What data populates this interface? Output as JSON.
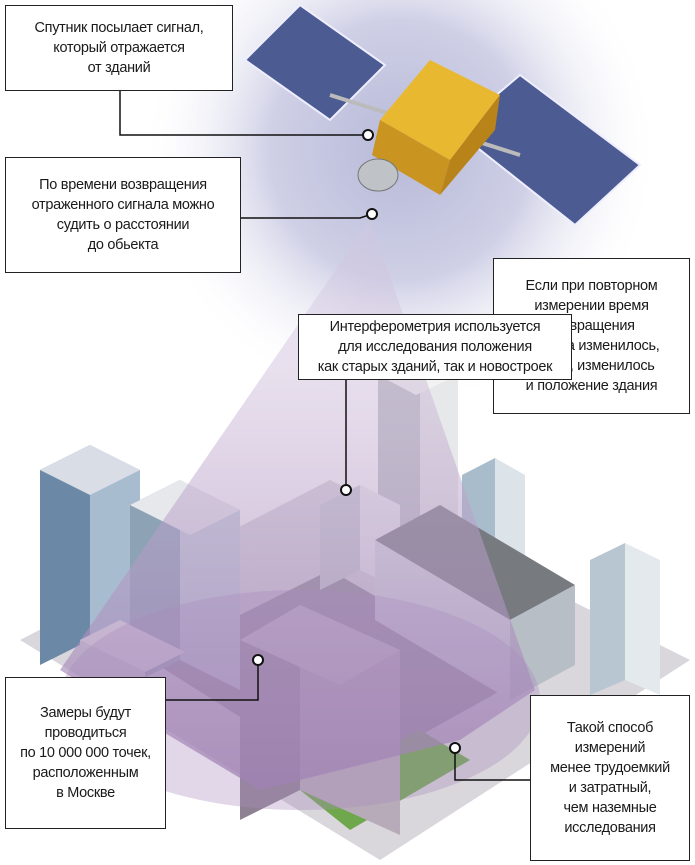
{
  "callouts": [
    {
      "lines": [
        "Спутник посылает сигнал,",
        "который отражается",
        "от зданий"
      ]
    },
    {
      "lines": [
        "По времени возвращения",
        "отраженного сигнала можно",
        "судить о расстоянии",
        "до обьекта"
      ]
    },
    {
      "lines": [
        "Если при повторном",
        "измерении время",
        "возвращения",
        "сигнала изменилось,",
        "значит, изменилось",
        "и положение здания"
      ]
    },
    {
      "lines": [
        "Интерферометрия используется",
        "для исследования положения",
        "как старых зданий, так и новостроек"
      ]
    },
    {
      "lines": [
        "Замеры будут",
        "проводиться",
        "по 10 000 000 точек,",
        "расположенным",
        "в Москве"
      ]
    },
    {
      "lines": [
        "Такой способ",
        "измерений",
        "менее трудоемкий",
        "и затратный,",
        "чем наземные",
        "исследования"
      ]
    }
  ]
}
